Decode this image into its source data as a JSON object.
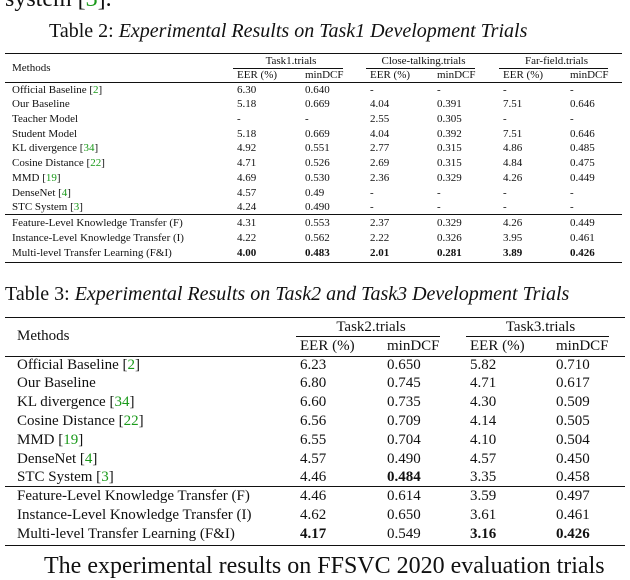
{
  "top_text": [
    "system [",
    "3",
    "]."
  ],
  "table2": {
    "label": "Table 2:",
    "title": "Experimental Results on Task1 Development Trials",
    "methods_header": "Methods",
    "groups": [
      {
        "name": "Task1.trials",
        "columns": [
          "EER (%)",
          "minDCF"
        ]
      },
      {
        "name": "Close-talking.trials",
        "columns": [
          "EER (%)",
          "minDCF"
        ]
      },
      {
        "name": "Far-field.trials",
        "columns": [
          "EER (%)",
          "minDCF"
        ]
      }
    ],
    "sections": [
      [
        {
          "method": [
            "Official Baseline [",
            "2",
            "]"
          ],
          "values": [
            "6.30",
            "0.640",
            "-",
            "-",
            "-",
            "-"
          ]
        },
        {
          "method": [
            "Our Baseline"
          ],
          "values": [
            "5.18",
            "0.669",
            "4.04",
            "0.391",
            "7.51",
            "0.646"
          ]
        },
        {
          "method": [
            "Teacher Model"
          ],
          "values": [
            "-",
            "-",
            "2.55",
            "0.305",
            "-",
            "-"
          ]
        },
        {
          "method": [
            "Student Model"
          ],
          "values": [
            "5.18",
            "0.669",
            "4.04",
            "0.392",
            "7.51",
            "0.646"
          ]
        },
        {
          "method": [
            "KL divergence [",
            "34",
            "]"
          ],
          "values": [
            "4.92",
            "0.551",
            "2.77",
            "0.315",
            "4.86",
            "0.485"
          ]
        },
        {
          "method": [
            "Cosine Distance [",
            "22",
            "]"
          ],
          "values": [
            "4.71",
            "0.526",
            "2.69",
            "0.315",
            "4.84",
            "0.475"
          ]
        },
        {
          "method": [
            "MMD [",
            "19",
            "]"
          ],
          "values": [
            "4.69",
            "0.530",
            "2.36",
            "0.329",
            "4.26",
            "0.449"
          ]
        },
        {
          "method": [
            "DenseNet [",
            "4",
            "]"
          ],
          "values": [
            "4.57",
            "0.49",
            "-",
            "-",
            "-",
            "-"
          ]
        },
        {
          "method": [
            "STC System [",
            "3",
            "]"
          ],
          "values": [
            "4.24",
            "0.490",
            "-",
            "-",
            "-",
            "-"
          ]
        }
      ],
      [
        {
          "method": [
            "Feature-Level Knowledge Transfer (F)"
          ],
          "values": [
            "4.31",
            "0.553",
            "2.37",
            "0.329",
            "4.26",
            "0.449"
          ]
        },
        {
          "method": [
            "Instance-Level Knowledge Transfer (I)"
          ],
          "values": [
            "4.22",
            "0.562",
            "2.22",
            "0.326",
            "3.95",
            "0.461"
          ]
        },
        {
          "method": [
            "Multi-level Transfer Learning (F&I)"
          ],
          "values": [
            "4.00",
            "0.483",
            "2.01",
            "0.281",
            "3.89",
            "0.426"
          ],
          "bold": [
            0,
            1,
            2,
            3,
            4,
            5
          ]
        }
      ]
    ]
  },
  "table3": {
    "label": "Table 3:",
    "title": "Experimental Results on Task2 and Task3 Development Trials",
    "methods_header": "Methods",
    "groups": [
      {
        "name": "Task2.trials",
        "columns": [
          "EER (%)",
          "minDCF"
        ]
      },
      {
        "name": "Task3.trials",
        "columns": [
          "EER (%)",
          "minDCF"
        ]
      }
    ],
    "sections": [
      [
        {
          "method": [
            "Official Baseline [",
            "2",
            "]"
          ],
          "values": [
            "6.23",
            "0.650",
            "5.82",
            "0.710"
          ]
        },
        {
          "method": [
            "Our Baseline"
          ],
          "values": [
            "6.80",
            "0.745",
            "4.71",
            "0.617"
          ]
        },
        {
          "method": [
            "KL divergence [",
            "34",
            "]"
          ],
          "values": [
            "6.60",
            "0.735",
            "4.30",
            "0.509"
          ]
        },
        {
          "method": [
            "Cosine Distance [",
            "22",
            "]"
          ],
          "values": [
            "6.56",
            "0.709",
            "4.14",
            "0.505"
          ]
        },
        {
          "method": [
            "MMD [",
            "19",
            "]"
          ],
          "values": [
            "6.55",
            "0.704",
            "4.10",
            "0.504"
          ]
        },
        {
          "method": [
            "DenseNet [",
            "4",
            "]"
          ],
          "values": [
            "4.57",
            "0.490",
            "4.57",
            "0.450"
          ]
        },
        {
          "method": [
            "STC System [",
            "3",
            "]"
          ],
          "values": [
            "4.46",
            "0.484",
            "3.35",
            "0.458"
          ],
          "bold": [
            1
          ]
        }
      ],
      [
        {
          "method": [
            "Feature-Level Knowledge Transfer (F)"
          ],
          "values": [
            "4.46",
            "0.614",
            "3.59",
            "0.497"
          ]
        },
        {
          "method": [
            "Instance-Level Knowledge Transfer (I)"
          ],
          "values": [
            "4.62",
            "0.650",
            "3.61",
            "0.461"
          ]
        },
        {
          "method": [
            "Multi-level Transfer Learning (F&I)"
          ],
          "values": [
            "4.17",
            "0.549",
            "3.16",
            "0.426"
          ],
          "bold": [
            0,
            2,
            3
          ]
        }
      ]
    ]
  },
  "bottom_text": "The experimental results on FFSVC 2020 evaluation trials"
}
